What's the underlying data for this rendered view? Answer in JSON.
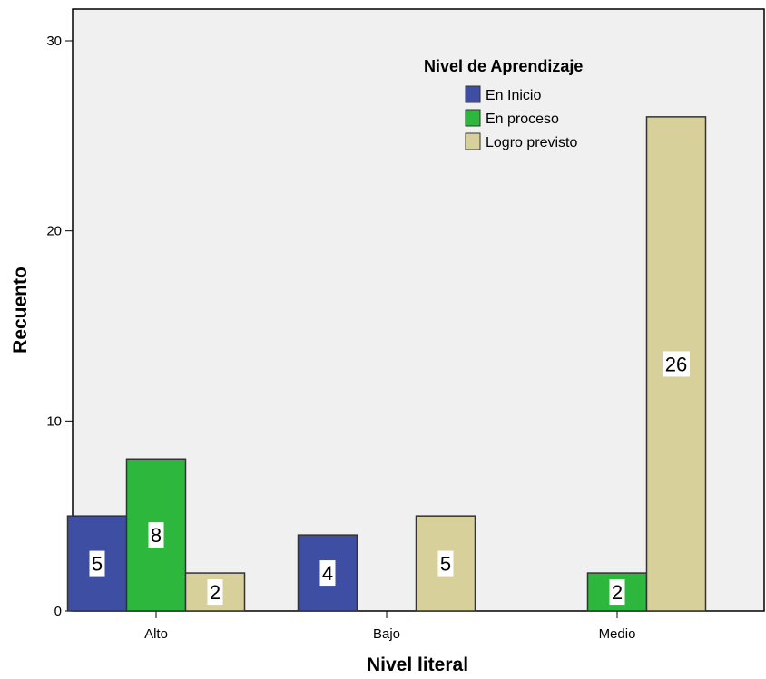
{
  "chart_data": {
    "type": "bar",
    "categories": [
      "Alto",
      "Bajo",
      "Medio"
    ],
    "series": [
      {
        "name": "En Inicio",
        "values": [
          5,
          4,
          0
        ],
        "color": "#3d4ea3"
      },
      {
        "name": "En proceso",
        "values": [
          8,
          0,
          2
        ],
        "color": "#2db83d"
      },
      {
        "name": "Logro previsto",
        "values": [
          2,
          5,
          26
        ],
        "color": "#d8d09a"
      }
    ],
    "xlabel": "Nivel literal",
    "ylabel": "Recuento",
    "ylim": [
      0,
      30
    ],
    "yticks": [
      0,
      10,
      20,
      30
    ],
    "legend_title": "Nivel de Aprendizaje",
    "legend_position": "top-right",
    "plot_background": "#f0f0f0",
    "grid": false
  }
}
